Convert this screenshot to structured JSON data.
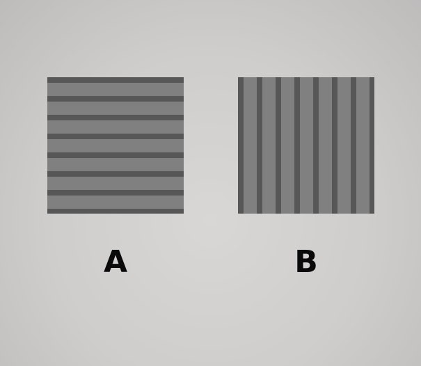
{
  "options": [
    {
      "label": "A",
      "pattern": "horizontal-stripes",
      "stripe_color": "#575757",
      "base_color": "#808080"
    },
    {
      "label": "B",
      "pattern": "vertical-stripes",
      "stripe_color": "#575757",
      "base_color": "#808080"
    }
  ],
  "background_color": "#d4d2d0"
}
